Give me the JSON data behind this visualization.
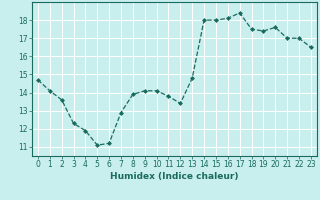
{
  "x": [
    0,
    1,
    2,
    3,
    4,
    5,
    6,
    7,
    8,
    9,
    10,
    11,
    12,
    13,
    14,
    15,
    16,
    17,
    18,
    19,
    20,
    21,
    22,
    23
  ],
  "y": [
    14.7,
    14.1,
    13.6,
    12.3,
    11.9,
    11.1,
    11.2,
    12.9,
    13.9,
    14.1,
    14.1,
    13.8,
    13.4,
    14.8,
    18.0,
    18.0,
    18.1,
    18.4,
    17.5,
    17.4,
    17.6,
    17.0,
    17.0,
    16.5
  ],
  "xlabel": "Humidex (Indice chaleur)",
  "xlim": [
    -0.5,
    23.5
  ],
  "ylim": [
    10.5,
    19.0
  ],
  "yticks": [
    11,
    12,
    13,
    14,
    15,
    16,
    17,
    18
  ],
  "xticks": [
    0,
    1,
    2,
    3,
    4,
    5,
    6,
    7,
    8,
    9,
    10,
    11,
    12,
    13,
    14,
    15,
    16,
    17,
    18,
    19,
    20,
    21,
    22,
    23
  ],
  "line_color": "#1a6b5e",
  "bg_color": "#c8eeee",
  "grid_color": "#ffffff",
  "label_fontsize": 6.5,
  "tick_fontsize": 5.5
}
